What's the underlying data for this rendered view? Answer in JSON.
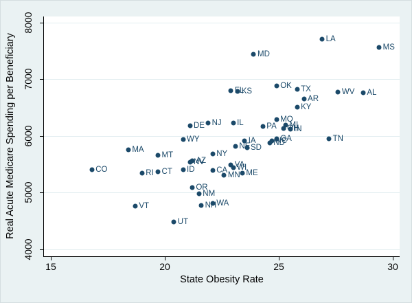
{
  "figure": {
    "background_color": "#eaf2f3",
    "plot_background_color": "#ffffff",
    "gridline_color": "#e2edf0",
    "marker_color": "#1b4969",
    "label_color": "#1b4969",
    "axis_color": "#000000"
  },
  "chart_data": {
    "type": "scatter",
    "title": "",
    "xlabel": "State Obesity Rate",
    "ylabel": "Real Acute Medicare Spending per Beneficiary",
    "xlim": [
      14.7,
      30.3
    ],
    "ylim": [
      3875,
      8105
    ],
    "x_ticks": [
      15,
      20,
      25,
      30
    ],
    "y_ticks": [
      4000,
      5000,
      6000,
      7000,
      8000
    ],
    "grid": "horizontal-only",
    "legend": "none",
    "marker_labels_position": "right",
    "points": [
      {
        "label": "CO",
        "x": 16.8,
        "y": 5400
      },
      {
        "label": "MA",
        "x": 18.4,
        "y": 5750
      },
      {
        "label": "VT",
        "x": 18.7,
        "y": 4760
      },
      {
        "label": "RI",
        "x": 19.0,
        "y": 5340
      },
      {
        "label": "CT",
        "x": 19.7,
        "y": 5360
      },
      {
        "label": "MT",
        "x": 19.7,
        "y": 5660
      },
      {
        "label": "UT",
        "x": 20.4,
        "y": 4480
      },
      {
        "label": "WY",
        "x": 20.8,
        "y": 5930
      },
      {
        "label": "ID",
        "x": 20.8,
        "y": 5400
      },
      {
        "label": "DE",
        "x": 21.1,
        "y": 6180
      },
      {
        "label": "NV",
        "x": 21.1,
        "y": 5530
      },
      {
        "label": "AZ",
        "x": 21.2,
        "y": 5560
      },
      {
        "label": "OR",
        "x": 21.2,
        "y": 5090
      },
      {
        "label": "NM",
        "x": 21.5,
        "y": 4980
      },
      {
        "label": "NH",
        "x": 21.6,
        "y": 4770
      },
      {
        "label": "NJ",
        "x": 21.9,
        "y": 6230
      },
      {
        "label": "NY",
        "x": 22.1,
        "y": 5680
      },
      {
        "label": "WA",
        "x": 22.1,
        "y": 4810
      },
      {
        "label": "CA",
        "x": 22.1,
        "y": 5390
      },
      {
        "label": "MN",
        "x": 22.6,
        "y": 5310
      },
      {
        "label": "FL",
        "x": 22.9,
        "y": 6790
      },
      {
        "label": "VA",
        "x": 22.9,
        "y": 5490
      },
      {
        "label": "IL",
        "x": 23.0,
        "y": 6230
      },
      {
        "label": "WI",
        "x": 23.0,
        "y": 5440
      },
      {
        "label": "NE",
        "x": 23.1,
        "y": 5810
      },
      {
        "label": "KS",
        "x": 23.2,
        "y": 6780
      },
      {
        "label": "ME",
        "x": 23.4,
        "y": 5340
      },
      {
        "label": "IA",
        "x": 23.5,
        "y": 5910
      },
      {
        "label": "SD",
        "x": 23.6,
        "y": 5790
      },
      {
        "label": "MD",
        "x": 23.9,
        "y": 7440
      },
      {
        "label": "PA",
        "x": 24.3,
        "y": 6170
      },
      {
        "label": "ND",
        "x": 24.6,
        "y": 5870
      },
      {
        "label": "NC",
        "x": 24.7,
        "y": 5910
      },
      {
        "label": "GA",
        "x": 24.9,
        "y": 5950
      },
      {
        "label": "OK",
        "x": 24.9,
        "y": 6880
      },
      {
        "label": "MO",
        "x": 24.9,
        "y": 6290
      },
      {
        "label": "OH",
        "x": 25.2,
        "y": 6130
      },
      {
        "label": "MI",
        "x": 25.3,
        "y": 6190
      },
      {
        "label": "IN",
        "x": 25.5,
        "y": 6120
      },
      {
        "label": "KY",
        "x": 25.8,
        "y": 6510
      },
      {
        "label": "TX",
        "x": 25.8,
        "y": 6820
      },
      {
        "label": "AR",
        "x": 26.1,
        "y": 6650
      },
      {
        "label": "LA",
        "x": 26.9,
        "y": 7700
      },
      {
        "label": "TN",
        "x": 27.2,
        "y": 5950
      },
      {
        "label": "WV",
        "x": 27.6,
        "y": 6770
      },
      {
        "label": "AL",
        "x": 28.7,
        "y": 6760
      },
      {
        "label": "MS",
        "x": 29.4,
        "y": 7560
      }
    ]
  }
}
